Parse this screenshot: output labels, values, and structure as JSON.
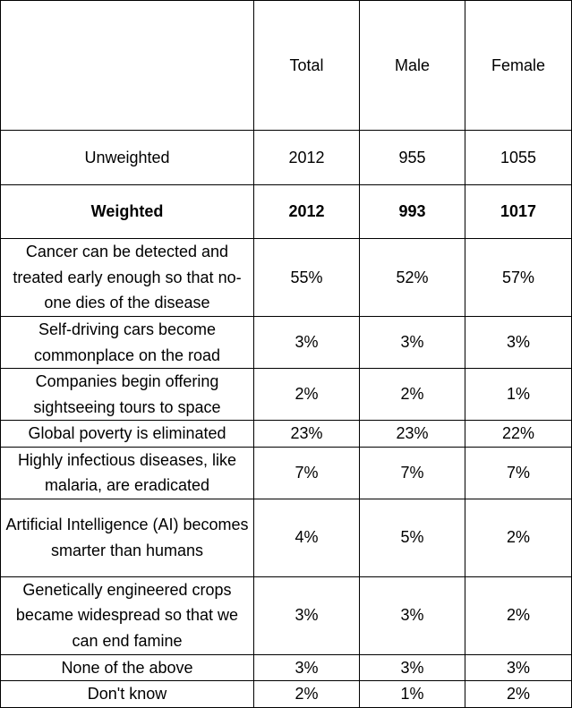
{
  "table": {
    "headers": [
      "",
      "Total",
      "Male",
      "Female"
    ],
    "unweighted": {
      "label": "Unweighted",
      "total": "2012",
      "male": "955",
      "female": "1055"
    },
    "weighted": {
      "label": "Weighted",
      "total": "2012",
      "male": "993",
      "female": "1017"
    },
    "rows": [
      {
        "label": "Cancer can be detected and treated early enough so that no-one dies of the disease",
        "total": "55%",
        "male": "52%",
        "female": "57%"
      },
      {
        "label": "Self-driving cars become commonplace on the road",
        "total": "3%",
        "male": "3%",
        "female": "3%"
      },
      {
        "label": "Companies begin offering sightseeing tours to space",
        "total": "2%",
        "male": "2%",
        "female": "1%"
      },
      {
        "label": "Global poverty is eliminated",
        "total": "23%",
        "male": "23%",
        "female": "22%"
      },
      {
        "label": "Highly infectious diseases, like malaria, are eradicated",
        "total": "7%",
        "male": "7%",
        "female": "7%"
      },
      {
        "label": "Artificial Intelligence (AI) becomes smarter than humans",
        "total": "4%",
        "male": "5%",
        "female": "2%"
      },
      {
        "label": "Genetically engineered crops became widespread so that we can end famine",
        "total": "3%",
        "male": "3%",
        "female": "2%"
      },
      {
        "label": "None of the above",
        "total": "3%",
        "male": "3%",
        "female": "3%"
      },
      {
        "label": "Don't know",
        "total": "2%",
        "male": "1%",
        "female": "2%"
      }
    ]
  }
}
